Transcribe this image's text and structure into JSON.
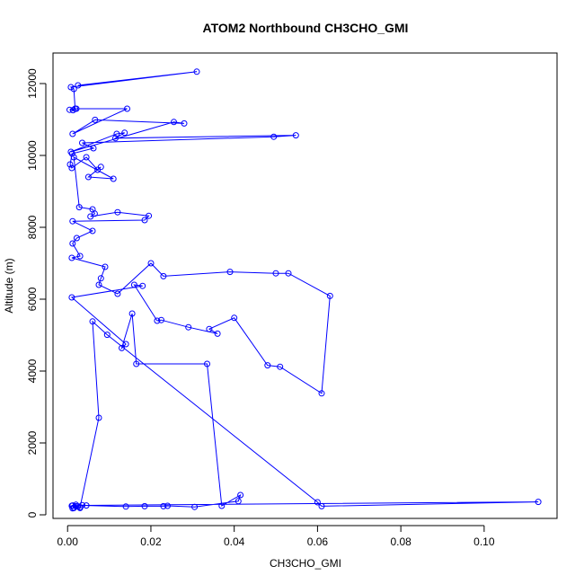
{
  "chart_data": {
    "type": "line",
    "title": "ATOM2 Northbound CH3CHO_GMI",
    "xlabel": "CH3CHO_GMI",
    "ylabel": "Altitude (m)",
    "xlim": [
      -0.0035,
      0.1175
    ],
    "ylim": [
      -100,
      12850
    ],
    "x_ticks": [
      0.0,
      0.02,
      0.04,
      0.06,
      0.08,
      0.1
    ],
    "x_tick_labels": [
      "0.00",
      "0.02",
      "0.04",
      "0.06",
      "0.08",
      "0.10"
    ],
    "y_ticks": [
      0,
      2000,
      4000,
      6000,
      8000,
      10000,
      12000
    ],
    "y_tick_labels": [
      "0",
      "2000",
      "4000",
      "6000",
      "8000",
      "10000",
      "12000"
    ],
    "grid": false,
    "legend": "none",
    "series": [
      {
        "color": "#0000ff",
        "marker": "open-circle",
        "x": [
          0.0025,
          0.031,
          0.0008,
          0.0015,
          0.0018,
          0.0005,
          0.0013,
          0.0021,
          0.0143,
          0.0012,
          0.0066,
          0.028,
          0.0255,
          0.0008,
          0.0118,
          0.0137,
          0.0115,
          0.0548,
          0.0495,
          0.0035,
          0.0062,
          0.0011,
          0.0006,
          0.001,
          0.0045,
          0.0072,
          0.008,
          0.005,
          0.011,
          0.0015,
          0.0028,
          0.006,
          0.0065,
          0.0055,
          0.012,
          0.0195,
          0.0185,
          0.0012,
          0.006,
          0.0022,
          0.0012,
          0.003,
          0.001,
          0.009,
          0.008,
          0.0075,
          0.012,
          0.02,
          0.023,
          0.039,
          0.05,
          0.053,
          0.063,
          0.061,
          0.051,
          0.048,
          0.04,
          0.034,
          0.036,
          0.029,
          0.0225,
          0.0215,
          0.016,
          0.018,
          0.001,
          0.014,
          0.013,
          0.0155,
          0.0165,
          0.0335,
          0.037,
          0.0415,
          0.041,
          0.0305,
          0.024,
          0.023,
          0.0185,
          0.014,
          0.0045,
          0.0035,
          0.002,
          0.0015,
          0.001,
          0.0025,
          0.0012,
          0.003,
          0.0075,
          0.006,
          0.0095,
          0.06,
          0.061,
          0.113,
          0.0012,
          0.002,
          0.0015,
          0.003
        ],
        "y": [
          11950,
          12330,
          11900,
          11850,
          11300,
          11270,
          11260,
          11300,
          11300,
          10600,
          10990,
          10890,
          10930,
          10100,
          10600,
          10630,
          10480,
          10560,
          10520,
          10350,
          10200,
          10050,
          9750,
          9650,
          9950,
          9600,
          9680,
          9400,
          9350,
          9950,
          8560,
          8500,
          8380,
          8300,
          8420,
          8320,
          8200,
          8170,
          7900,
          7700,
          7550,
          7200,
          7150,
          6900,
          6580,
          6400,
          6150,
          7000,
          6640,
          6760,
          6720,
          6720,
          6090,
          3380,
          4120,
          4160,
          5480,
          5170,
          5040,
          5220,
          5420,
          5400,
          6400,
          6370,
          6050,
          4750,
          4640,
          5600,
          4200,
          4200,
          250,
          550,
          380,
          220,
          250,
          240,
          240,
          230,
          260,
          270,
          240,
          200,
          250,
          230,
          180,
          210,
          2700,
          5380,
          5010,
          350,
          240,
          360,
          260,
          280,
          190,
          190
        ]
      }
    ]
  }
}
